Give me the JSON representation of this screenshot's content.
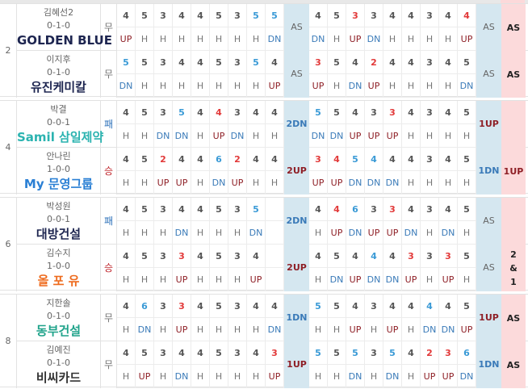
{
  "colors": {
    "birdie": "#e23a3a",
    "bogey": "#3a9ad6",
    "up": "#8e1f26",
    "dn": "#3a7ab8",
    "front_sum_bg": "#d5e7f0",
    "total_bg": "#fcdadb"
  },
  "pairs": [
    {
      "number": "2",
      "players": [
        {
          "name": "김혜선2",
          "record": "0-1-0",
          "result": "무",
          "logo": "GOLDEN BLUE",
          "logo_color": "#1d2550",
          "front": [
            "4",
            "5",
            "3",
            "4",
            "4",
            "5",
            "3",
            "5",
            "5"
          ],
          "front_marks": "nnnnnnnbb",
          "front_status": [
            "UP",
            "H",
            "H",
            "H",
            "H",
            "H",
            "H",
            "H",
            "DN"
          ],
          "front_sum": "AS",
          "back": [
            "4",
            "5",
            "3",
            "3",
            "4",
            "4",
            "3",
            "4",
            "4"
          ],
          "back_marks": "nnrnnnnnr",
          "back_status": [
            "DN",
            "H",
            "UP",
            "DN",
            "H",
            "H",
            "H",
            "H",
            "UP"
          ],
          "back_sum": "AS",
          "final": "AS"
        },
        {
          "name": "이지후",
          "record": "0-1-0",
          "result": "무",
          "logo": "유진케미칼",
          "logo_color": "#1d2550",
          "front": [
            "5",
            "5",
            "3",
            "4",
            "4",
            "5",
            "3",
            "5",
            "4"
          ],
          "front_marks": "bnnnnnnbn",
          "front_status": [
            "DN",
            "H",
            "H",
            "H",
            "H",
            "H",
            "H",
            "H",
            "UP"
          ],
          "front_sum": "AS",
          "back": [
            "3",
            "5",
            "4",
            "2",
            "4",
            "4",
            "3",
            "4",
            "5"
          ],
          "back_marks": "rnnrnnnnn",
          "back_status": [
            "UP",
            "H",
            "DN",
            "UP",
            "H",
            "H",
            "H",
            "H",
            "DN"
          ],
          "back_sum": "AS",
          "final": "AS"
        }
      ]
    },
    {
      "number": "4",
      "players": [
        {
          "name": "박결",
          "record": "0-0-1",
          "result": "패",
          "logo": "Samil 삼일제약",
          "logo_color": "#2bb3b0",
          "front": [
            "4",
            "5",
            "3",
            "5",
            "4",
            "4",
            "3",
            "4",
            "4"
          ],
          "front_marks": "nnnbnrnnn",
          "front_status": [
            "H",
            "H",
            "DN",
            "DN",
            "H",
            "UP",
            "DN",
            "H",
            "H"
          ],
          "front_sum": "2DN",
          "back": [
            "5",
            "5",
            "4",
            "3",
            "3",
            "4",
            "3",
            "4",
            "5"
          ],
          "back_marks": "bnnnrnnnn",
          "back_status": [
            "DN",
            "DN",
            "UP",
            "UP",
            "UP",
            "H",
            "H",
            "H",
            "H"
          ],
          "back_sum": "1UP",
          "final": ""
        },
        {
          "name": "안나린",
          "record": "1-0-0",
          "result": "승",
          "logo": "My 문영그룹",
          "logo_color": "#2a7fd4",
          "front": [
            "4",
            "5",
            "2",
            "4",
            "4",
            "6",
            "2",
            "4",
            "4"
          ],
          "front_marks": "nnrnnbrnn",
          "front_status": [
            "H",
            "H",
            "UP",
            "UP",
            "H",
            "DN",
            "UP",
            "H",
            "H"
          ],
          "front_sum": "2UP",
          "back": [
            "3",
            "4",
            "5",
            "4",
            "4",
            "4",
            "3",
            "4",
            "5"
          ],
          "back_marks": "rrbbnnnnn",
          "back_status": [
            "UP",
            "UP",
            "DN",
            "DN",
            "DN",
            "H",
            "H",
            "H",
            "H"
          ],
          "back_sum": "1DN",
          "final": "1UP"
        }
      ]
    },
    {
      "number": "6",
      "players": [
        {
          "name": "박성원",
          "record": "0-0-1",
          "result": "패",
          "logo": "대방건설",
          "logo_color": "#1d2550",
          "front": [
            "4",
            "5",
            "3",
            "4",
            "4",
            "5",
            "3",
            "5",
            ""
          ],
          "front_marks": "nnnnnnnbn",
          "front_status": [
            "H",
            "H",
            "H",
            "DN",
            "H",
            "H",
            "H",
            "DN",
            ""
          ],
          "front_sum": "2DN",
          "back": [
            "4",
            "4",
            "6",
            "3",
            "3",
            "4",
            "3",
            "4",
            "5"
          ],
          "back_marks": "nrbnrnnnn",
          "back_status": [
            "H",
            "UP",
            "DN",
            "UP",
            "UP",
            "DN",
            "H",
            "DN",
            "H"
          ],
          "back_sum": "AS",
          "final": ""
        },
        {
          "name": "김수지",
          "record": "1-0-0",
          "result": "승",
          "logo": "올 포 유",
          "logo_color": "#ee6a1c",
          "front": [
            "4",
            "5",
            "3",
            "3",
            "4",
            "5",
            "3",
            "4",
            ""
          ],
          "front_marks": "nnnrnnnnn",
          "front_status": [
            "H",
            "H",
            "H",
            "UP",
            "H",
            "H",
            "H",
            "UP",
            ""
          ],
          "front_sum": "2UP",
          "back": [
            "4",
            "5",
            "4",
            "4",
            "4",
            "3",
            "3",
            "3",
            "5"
          ],
          "back_marks": "nnnbnrnrn",
          "back_status": [
            "H",
            "DN",
            "UP",
            "DN",
            "DN",
            "UP",
            "H",
            "UP",
            "H"
          ],
          "back_sum": "AS",
          "final": "2 & 1"
        }
      ]
    },
    {
      "number": "8",
      "players": [
        {
          "name": "지한솔",
          "record": "0-1-0",
          "result": "무",
          "logo": "동부건설",
          "logo_color": "#1fa38a",
          "front": [
            "4",
            "6",
            "3",
            "3",
            "4",
            "5",
            "3",
            "4",
            "4"
          ],
          "front_marks": "nbnrnnnnn",
          "front_status": [
            "H",
            "DN",
            "H",
            "UP",
            "H",
            "H",
            "H",
            "H",
            "DN"
          ],
          "front_sum": "1DN",
          "back": [
            "5",
            "5",
            "4",
            "3",
            "4",
            "4",
            "4",
            "4",
            "5"
          ],
          "back_marks": "bnnnnnbnn",
          "back_status": [
            "H",
            "H",
            "UP",
            "H",
            "UP",
            "H",
            "DN",
            "DN",
            "UP"
          ],
          "back_sum": "1UP",
          "final": "AS"
        },
        {
          "name": "김예진",
          "record": "0-1-0",
          "result": "무",
          "logo": "비씨카드",
          "logo_color": "#333333",
          "front": [
            "4",
            "5",
            "3",
            "4",
            "4",
            "5",
            "3",
            "4",
            "3"
          ],
          "front_marks": "nnnnnnnnr",
          "front_status": [
            "H",
            "UP",
            "H",
            "DN",
            "H",
            "H",
            "H",
            "H",
            "UP"
          ],
          "front_sum": "1UP",
          "back": [
            "5",
            "5",
            "5",
            "3",
            "5",
            "4",
            "2",
            "3",
            "6"
          ],
          "back_marks": "bnbnbnrrb",
          "back_status": [
            "H",
            "H",
            "DN",
            "H",
            "DN",
            "H",
            "UP",
            "UP",
            "DN"
          ],
          "back_sum": "1DN",
          "final": "AS"
        }
      ]
    }
  ]
}
